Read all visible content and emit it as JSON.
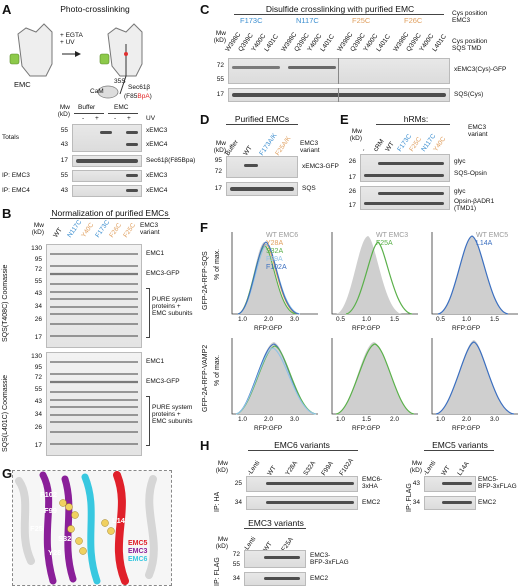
{
  "panels": {
    "A": {
      "letter": "A",
      "title": "Photo-crosslinking",
      "labels": {
        "emc": "EMC",
        "egta_uv": "+ EGTA\n+ UV",
        "cam": "CaM",
        "s35": "35S",
        "sec61b": "Sec61β",
        "f85": "(F85",
        "bpa": "BpA",
        "close": ")"
      },
      "header": {
        "buffer": "Buffer",
        "emc": "EMC",
        "uv": "UV",
        "mw": "Mw\n(kD)"
      },
      "uv_signs": [
        "-",
        "+",
        "-",
        "+"
      ],
      "rows": [
        {
          "group": "Totals",
          "mw": [
            "55",
            "43"
          ],
          "labels": [
            "xEMC3",
            "xEMC4"
          ]
        },
        {
          "group": "",
          "mw": [
            "17"
          ],
          "labels": [
            "Sec61β(F85Bpa)"
          ]
        },
        {
          "group": "IP: EMC3",
          "mw": [
            "55"
          ],
          "labels": [
            "xEMC3"
          ]
        },
        {
          "group": "IP: EMC4",
          "mw": [
            "43"
          ],
          "labels": [
            "xEMC4"
          ]
        }
      ]
    },
    "B": {
      "letter": "B",
      "title": "Normalization of purified EMCs",
      "lanes": [
        "WT",
        "N117C",
        "Y40C",
        "F173C",
        "F26C",
        "F25C"
      ],
      "lane_colors": [
        "#222222",
        "#3b8ed0",
        "#e0a060",
        "#3b8ed0",
        "#e0a060",
        "#e0a060"
      ],
      "variant_label": "EMC3\nvariant",
      "mw_label": "Mw\n(kD)",
      "gel1_side": "SQS(T408C) Coomassie",
      "gel2_side": "SQS(L401C) Coomassie",
      "mw1": [
        "130",
        "95",
        "72",
        "55",
        "43",
        "34",
        "26",
        "17"
      ],
      "mw2": [
        "130",
        "95",
        "72",
        "55",
        "43",
        "34",
        "26",
        "17"
      ],
      "annot": {
        "emc1": "EMC1",
        "emc3gfp": "EMC3-GFP",
        "pure": "PURE system\nproteins +\nEMC subunits"
      }
    },
    "C": {
      "letter": "C",
      "title": "Disulfide crosslinking with purified EMC",
      "groups": [
        {
          "name": "F173C",
          "color": "#3b8ed0"
        },
        {
          "name": "N117C",
          "color": "#3b8ed0"
        },
        {
          "name": "F25C",
          "color": "#e0a060"
        },
        {
          "name": "F26C",
          "color": "#e0a060"
        }
      ],
      "sublanes": [
        "W398C",
        "Q399C",
        "Y400C",
        "L401C"
      ],
      "cys_emc3": "Cys position\nEMC3",
      "cys_sqs": "Cys position\nSQS TMD",
      "mw": [
        "72",
        "55",
        "17"
      ],
      "labels": [
        "xEMC3(Cys)-GFP",
        "SQS(Cys)"
      ],
      "mw_label": "Mw\n(kD)"
    },
    "D": {
      "letter": "D",
      "title": "Purified EMCs",
      "lanes": [
        "Buffer",
        "WT",
        "F173A/K",
        "F25A/K"
      ],
      "lane_colors": [
        "#222222",
        "#222222",
        "#3b8ed0",
        "#e0a060"
      ],
      "variant_label": "EMC3\nvariant",
      "mw": [
        "95",
        "72",
        "17"
      ],
      "labels": [
        "xEMC3-GFP",
        "SQS"
      ],
      "mw_label": "Mw\n(kD)"
    },
    "E": {
      "letter": "E",
      "title": "hRMs:",
      "lanes": [
        "-",
        "cRM",
        "WT",
        "F173C",
        "F25C",
        "N117C",
        "Y40C"
      ],
      "lane_colors": [
        "#222222",
        "#222222",
        "#222222",
        "#3b8ed0",
        "#e0a060",
        "#3b8ed0",
        "#e0a060"
      ],
      "variant_label": "EMC3\nvariant",
      "mw": [
        "26",
        "17",
        "26",
        "17"
      ],
      "labels": [
        "glyc",
        "SQS-Opsin",
        "glyc",
        "Opsin-βADR1\n(TMD1)"
      ],
      "mw_label": "Mw\n(kD)"
    },
    "F": {
      "letter": "F",
      "row_labels": [
        "GFP-2A-RFP-SQS",
        "GFP-2A-RFP-VAMP2"
      ],
      "y_label": "% of max.",
      "x_label": "RFP:GFP",
      "columns": [
        {
          "wt_label": "WT EMC6",
          "legend": [
            {
              "name": "Y28A",
              "color": "#e0a060"
            },
            {
              "name": "S32A",
              "color": "#5ab04a"
            },
            {
              "name": "F99A",
              "color": "#8fc3e8"
            },
            {
              "name": "F102A",
              "color": "#3b6fc0"
            }
          ],
          "ticks": [
            "1.0",
            "2.0",
            "3.0"
          ]
        },
        {
          "wt_label": "WT EMC3",
          "legend": [
            {
              "name": "F25A",
              "color": "#5ab04a"
            }
          ],
          "ticks": [
            "0.5",
            "1.0",
            "1.5"
          ]
        },
        {
          "wt_label": "WT EMC5",
          "legend": [
            {
              "name": "L14A",
              "color": "#3b6fc0"
            }
          ],
          "ticks": [
            "0.5",
            "1.0",
            "1.5"
          ]
        }
      ],
      "ticks_row2": [
        [
          "1.0",
          "2.0",
          "3.0"
        ],
        [
          "1.0",
          "1.5",
          "2.0"
        ],
        [
          "1.0",
          "2.0",
          "3.0"
        ]
      ]
    },
    "G": {
      "letter": "G",
      "residues": [
        "F102",
        "F99",
        "F25",
        "S32",
        "Y28",
        "L14"
      ],
      "legend": [
        {
          "name": "EMC5",
          "color": "#e0202a"
        },
        {
          "name": "EMC3",
          "color": "#8a1f99"
        },
        {
          "name": "EMC6",
          "color": "#38c8e0"
        }
      ]
    },
    "H": {
      "letter": "H",
      "emc6": {
        "title": "EMC6 variants",
        "lanes": [
          "-Lenti",
          "WT",
          "Y28A",
          "S32A",
          "F99A",
          "F102A"
        ],
        "ip": "IP: HA",
        "mw": [
          "25",
          "34"
        ],
        "labels": [
          "EMC6-\n3xHA",
          "EMC2"
        ],
        "mw_label": "Mw\n(kD)"
      },
      "emc5": {
        "title": "EMC5 variants",
        "lanes": [
          "-Lenti",
          "WT",
          "L14A"
        ],
        "ip": "IP: FLAG",
        "mw": [
          "43",
          "34"
        ],
        "labels": [
          "EMC5-\nBFP-3xFLAG",
          "EMC2"
        ],
        "mw_label": "Mw\n(kD)"
      },
      "emc3": {
        "title": "EMC3 variants",
        "lanes": [
          "-Lenti",
          "WT",
          "F25A"
        ],
        "ip": "IP: FLAG",
        "mw": [
          "72",
          "55",
          "34"
        ],
        "labels": [
          "EMC3-\nBFP-3xFLAG",
          "EMC2"
        ],
        "mw_label": "Mw\n(kD)"
      }
    }
  },
  "colors": {
    "orange": "#e0a060",
    "blue": "#3b8ed0",
    "green": "#5ab04a",
    "wtfill": "#cfcfcf"
  }
}
